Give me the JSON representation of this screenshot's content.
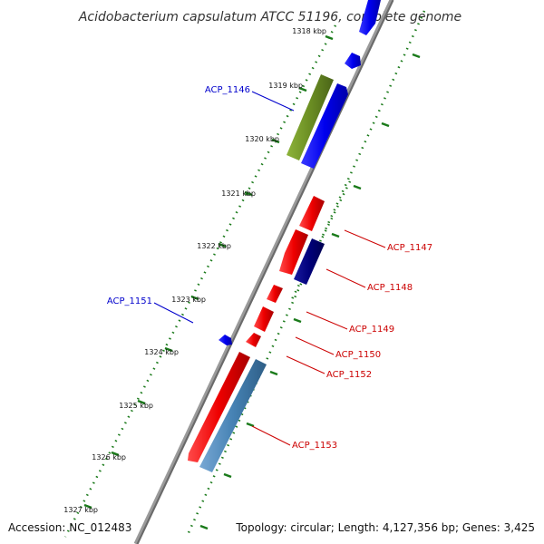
{
  "title": "Acidobacterium capsulatum ATCC 51196, complete genome",
  "footer": {
    "accession": "Accession: NC_012483",
    "summary": "Topology: circular; Length: 4,127,356 bp; Genes: 3,425"
  },
  "colors": {
    "backbone": "#808080",
    "ticks": "#1a7a1a",
    "label_left": "#0000cc",
    "label_right": "#cc0000",
    "gene_blue": "#0000ee",
    "gene_navy": "#00007a",
    "gene_olive": "#6b8e23",
    "gene_red": "#ee0000",
    "gene_steel": "#4682b4"
  },
  "position_labels": [
    "1318 kbp",
    "1319 kbp",
    "1320 kbp",
    "1321 kbp",
    "1322 kbp",
    "1323 kbp",
    "1324 kbp",
    "1325 kbp",
    "1326 kbp",
    "1327 kbp"
  ],
  "gene_labels": {
    "left": [
      "ACP_1146",
      "ACP_1151"
    ],
    "right": [
      "ACP_1147",
      "ACP_1148",
      "ACP_1149",
      "ACP_1150",
      "ACP_1152",
      "ACP_1153"
    ]
  }
}
